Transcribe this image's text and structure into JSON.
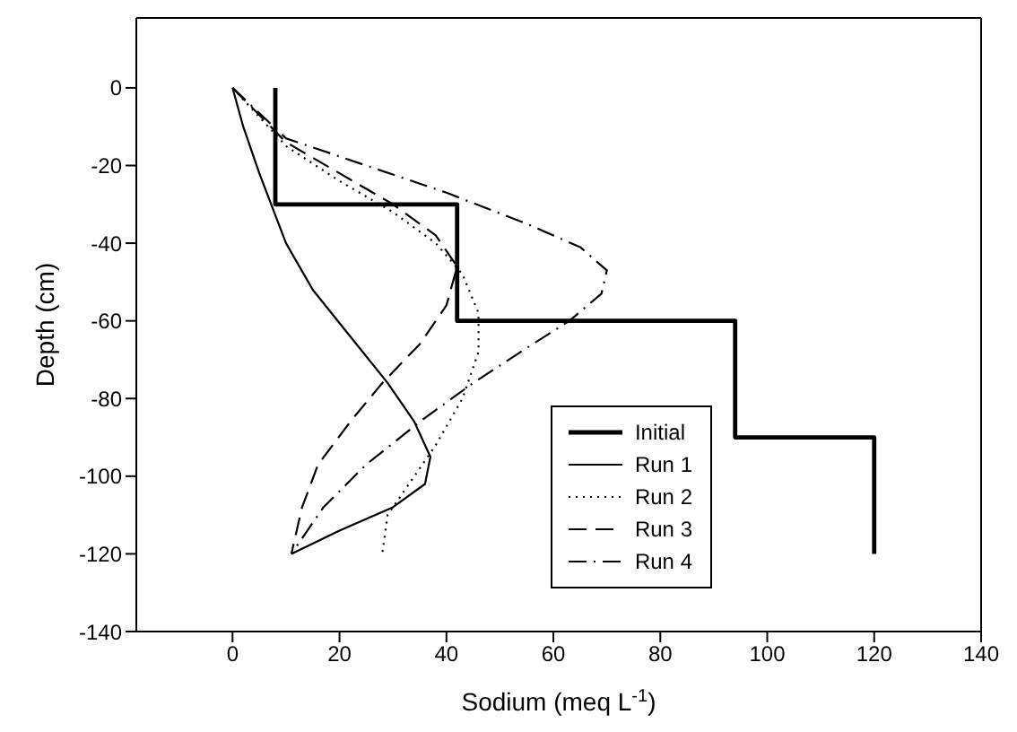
{
  "chart_data": {
    "type": "line",
    "xlabel": "Sodium (meq L$^{-1}$)",
    "ylabel": "Depth (cm)",
    "xlim": [
      -18,
      140
    ],
    "xticks": [
      0,
      20,
      40,
      60,
      80,
      100,
      120,
      140
    ],
    "ylim": [
      -140,
      18
    ],
    "yticks": [
      -140,
      -120,
      -100,
      -80,
      -60,
      -40,
      -20,
      0
    ],
    "grid": false,
    "legend": "bottom right",
    "marker": "none",
    "series": [
      {
        "name": "Initial",
        "color": "#000000",
        "line_style": "solid",
        "x": [
          8,
          8,
          42,
          42,
          94,
          94,
          120,
          120
        ],
        "values": [
          0,
          -30,
          -30,
          -60,
          -60,
          -90,
          -90,
          -120
        ]
      },
      {
        "name": "Run 1",
        "color": "#000000",
        "line_style": "solid",
        "x": [
          0,
          2,
          5,
          10,
          15,
          22,
          29,
          34,
          37,
          36,
          30,
          20,
          11
        ],
        "values": [
          0,
          -10,
          -22,
          -40,
          -52,
          -64,
          -76,
          -86,
          -95,
          -102,
          -108,
          -114,
          -120
        ]
      },
      {
        "name": "Run 2",
        "color": "#000000",
        "line_style": "dotted",
        "x": [
          0,
          10,
          20,
          30,
          38,
          43,
          46,
          46,
          43,
          38,
          33,
          29,
          28
        ],
        "values": [
          0,
          -15,
          -24,
          -32,
          -40,
          -48,
          -58,
          -68,
          -80,
          -92,
          -102,
          -110,
          -120
        ]
      },
      {
        "name": "Run 3",
        "color": "#000000",
        "line_style": "dashed",
        "x": [
          0,
          10,
          20,
          30,
          38,
          42,
          40,
          35,
          28,
          22,
          16,
          13,
          11
        ],
        "values": [
          0,
          -14,
          -22,
          -30,
          -38,
          -46,
          -56,
          -66,
          -76,
          -86,
          -97,
          -108,
          -120
        ]
      },
      {
        "name": "Run 4",
        "color": "#000000",
        "line_style": "dashdot",
        "x": [
          0,
          10,
          25,
          40,
          55,
          65,
          70,
          69,
          63,
          55,
          45,
          35,
          25,
          17,
          11
        ],
        "values": [
          0,
          -13,
          -20,
          -27,
          -35,
          -41,
          -47,
          -53,
          -60,
          -67,
          -76,
          -86,
          -97,
          -108,
          -120
        ]
      }
    ]
  }
}
